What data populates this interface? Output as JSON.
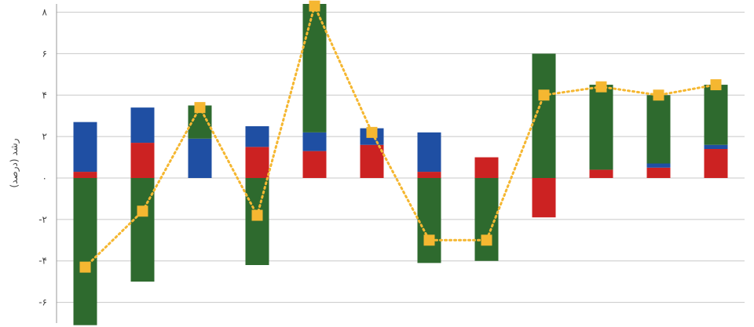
{
  "chart_data": {
    "type": "bar",
    "subtype": "stacked-bar-with-line",
    "ylabel": "رشد (درصد)",
    "ylim": [
      -7,
      8.4
    ],
    "yticks": [
      -6,
      -4,
      -2,
      0,
      2,
      4,
      6,
      8
    ],
    "ytick_labels": [
      "-۶",
      "-۴",
      "-۲",
      "۰",
      "۲",
      "۴",
      "۶",
      "۸"
    ],
    "grid": true,
    "legend": "none",
    "categories": [
      "",
      "",
      "",
      "",
      "",
      "",
      "",
      "",
      "",
      "",
      "",
      ""
    ],
    "colors": {
      "red": "#cc2222",
      "blue": "#1f4fa3",
      "green": "#2e6a2e",
      "line": "#f5b731",
      "grid": "#c8c8c8",
      "axis": "#999999"
    },
    "series": [
      {
        "color": "red",
        "values": [
          0.3,
          1.7,
          0.0,
          1.5,
          1.3,
          1.6,
          0.3,
          1.0,
          -1.9,
          0.4,
          0.5,
          1.4
        ]
      },
      {
        "color": "blue",
        "values": [
          2.4,
          1.7,
          1.9,
          1.0,
          0.9,
          0.8,
          1.9,
          0.0,
          0.0,
          0.0,
          0.2,
          0.2
        ]
      },
      {
        "color": "green",
        "values": [
          -7.1,
          -5.0,
          1.6,
          -4.2,
          6.2,
          0.0,
          -4.1,
          -4.0,
          6.0,
          4.1,
          3.3,
          2.9
        ]
      },
      {
        "type": "line",
        "color": "line",
        "values": [
          -4.3,
          -1.6,
          3.4,
          -1.8,
          8.3,
          2.2,
          -3.0,
          -3.0,
          4.0,
          4.4,
          4.0,
          4.5
        ]
      }
    ]
  }
}
